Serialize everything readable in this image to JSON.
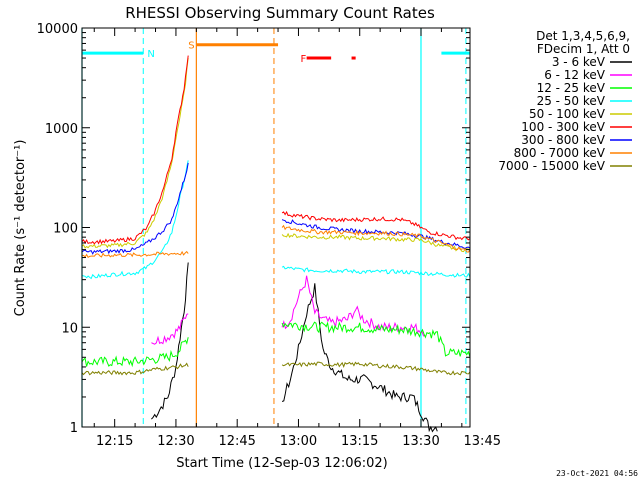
{
  "chart_data": {
    "type": "line",
    "title": "RHESSI Observing Summary Count Rates",
    "xlabel": "Start Time (12-Sep-03 12:06:02)",
    "ylabel": "Count Rate (s⁻¹ detector⁻¹)",
    "yscale": "log",
    "ylim": [
      1,
      10000
    ],
    "xlim_minutes": [
      7,
      102
    ],
    "y_ticks": [
      {
        "value": 1,
        "label": "1"
      },
      {
        "value": 10,
        "label": "10"
      },
      {
        "value": 100,
        "label": "100"
      },
      {
        "value": 1000,
        "label": "1000"
      },
      {
        "value": 10000,
        "label": "10000"
      }
    ],
    "x_ticks": [
      {
        "value": 15,
        "label": "12:15"
      },
      {
        "value": 30,
        "label": "12:30"
      },
      {
        "value": 45,
        "label": "12:45"
      },
      {
        "value": 60,
        "label": "13:00"
      },
      {
        "value": 75,
        "label": "13:15"
      },
      {
        "value": 90,
        "label": "13:30"
      },
      {
        "value": 105,
        "label": "13:45"
      }
    ],
    "legend_header": [
      "Det 1,3,4,5,6,9,",
      "FDecim 1, Att 0"
    ],
    "series": [
      {
        "name": "3 - 6 keV",
        "color": "#000000",
        "x": [
          7,
          22,
          24,
          26,
          28,
          30,
          31,
          32,
          33,
          35,
          38,
          55,
          56,
          58,
          60,
          62,
          64,
          66,
          68,
          72,
          76,
          80,
          84,
          88,
          92,
          94,
          96,
          98,
          100,
          102
        ],
        "y": [
          null,
          null,
          1.2,
          1.5,
          2,
          4,
          8,
          15,
          40,
          null,
          null,
          null,
          1.8,
          3,
          6,
          14,
          25,
          6,
          4,
          3,
          3,
          2.5,
          2,
          2,
          1,
          1,
          null,
          null,
          null,
          null
        ]
      },
      {
        "name": "6 - 12 keV",
        "color": "#ff00ff",
        "x": [
          7,
          22,
          24,
          26,
          28,
          30,
          31,
          32,
          33,
          35,
          38,
          55,
          56,
          58,
          60,
          62,
          64,
          66,
          68,
          72,
          74,
          76,
          80,
          84,
          88,
          91,
          93,
          96,
          98,
          100,
          102
        ],
        "y": [
          null,
          null,
          7,
          7.5,
          8,
          9,
          10,
          12,
          15,
          null,
          null,
          null,
          10,
          12,
          20,
          30,
          14,
          12,
          11,
          12,
          15,
          12,
          10,
          10,
          10,
          9,
          null,
          null,
          null,
          null,
          null
        ]
      },
      {
        "name": "12 - 25 keV",
        "color": "#00ff00",
        "x": [
          7,
          10,
          15,
          20,
          25,
          28,
          30,
          31,
          32,
          33,
          35,
          38,
          55,
          56,
          60,
          65,
          70,
          75,
          80,
          85,
          90,
          94,
          96,
          98,
          100,
          102
        ],
        "y": [
          4.5,
          4.5,
          4.5,
          4.5,
          4.8,
          5,
          5.5,
          6,
          7,
          8,
          null,
          null,
          null,
          11,
          10.5,
          10,
          10,
          10,
          9.5,
          9.5,
          9,
          8.5,
          5.5,
          5.5,
          5.5,
          5.5
        ]
      },
      {
        "name": "25 - 50 keV",
        "color": "#00ffff",
        "x": [
          7,
          10,
          15,
          20,
          23,
          25,
          27,
          29,
          30,
          31,
          32,
          33,
          35,
          38,
          55,
          56,
          60,
          65,
          70,
          75,
          80,
          85,
          90,
          95,
          100,
          102
        ],
        "y": [
          33,
          32,
          34,
          35,
          40,
          48,
          60,
          90,
          130,
          200,
          300,
          450,
          null,
          null,
          null,
          40,
          38,
          37,
          37,
          36,
          36,
          36,
          35,
          34,
          33,
          33
        ]
      },
      {
        "name": "50 - 100 keV",
        "color": "#cccc00",
        "x": [
          7,
          10,
          15,
          20,
          23,
          25,
          27,
          29,
          30,
          31,
          32,
          33,
          35,
          38,
          55,
          56,
          60,
          65,
          70,
          75,
          80,
          85,
          90,
          95,
          100,
          102
        ],
        "y": [
          65,
          65,
          66,
          70,
          90,
          130,
          220,
          450,
          800,
          1300,
          2200,
          4800,
          null,
          null,
          null,
          85,
          82,
          80,
          80,
          78,
          78,
          76,
          75,
          65,
          60,
          60
        ]
      },
      {
        "name": "100 - 300 keV",
        "color": "#ff0000",
        "x": [
          7,
          10,
          15,
          20,
          23,
          25,
          27,
          29,
          30,
          31,
          32,
          33,
          35,
          38,
          55,
          56,
          60,
          65,
          70,
          75,
          80,
          85,
          88,
          92,
          95,
          100,
          102
        ],
        "y": [
          72,
          72,
          73,
          78,
          100,
          150,
          250,
          500,
          900,
          1500,
          2500,
          5500,
          null,
          null,
          null,
          140,
          130,
          122,
          118,
          120,
          122,
          120,
          110,
          90,
          85,
          78,
          78
        ]
      },
      {
        "name": "300 - 800 keV",
        "color": "#0000ff",
        "x": [
          7,
          10,
          15,
          20,
          23,
          25,
          27,
          29,
          30,
          31,
          32,
          33,
          35,
          38,
          55,
          56,
          60,
          65,
          70,
          75,
          80,
          85,
          90,
          95,
          100,
          102
        ],
        "y": [
          57,
          57,
          58,
          60,
          70,
          80,
          95,
          120,
          160,
          220,
          300,
          430,
          null,
          null,
          null,
          120,
          110,
          100,
          95,
          92,
          90,
          88,
          82,
          72,
          65,
          62
        ]
      },
      {
        "name": "800 - 7000 keV",
        "color": "#ff8000",
        "x": [
          7,
          10,
          15,
          20,
          25,
          30,
          33,
          35,
          38,
          55,
          56,
          60,
          65,
          70,
          75,
          80,
          85,
          90,
          95,
          100,
          102
        ],
        "y": [
          52,
          52,
          53,
          53,
          54,
          55,
          55,
          null,
          null,
          null,
          100,
          95,
          90,
          90,
          88,
          88,
          86,
          82,
          70,
          60,
          58
        ]
      },
      {
        "name": "7000 - 15000 keV",
        "color": "#808000",
        "x": [
          7,
          10,
          15,
          20,
          25,
          30,
          33,
          35,
          38,
          55,
          56,
          60,
          65,
          70,
          75,
          80,
          85,
          90,
          95,
          100,
          102
        ],
        "y": [
          3.5,
          3.5,
          3.5,
          3.5,
          3.8,
          4,
          4.2,
          null,
          null,
          null,
          4.2,
          4.2,
          4.3,
          4.2,
          4.3,
          4.1,
          4,
          3.8,
          3.5,
          3.5,
          3.5
        ]
      }
    ],
    "flags": [
      {
        "code": "N",
        "color": "#00ffff",
        "value": 5600,
        "segments": [
          [
            7,
            22
          ],
          [
            95,
            102
          ]
        ]
      },
      {
        "code": "S",
        "color": "#ff8000",
        "value": 6800,
        "segments": [
          [
            35,
            55
          ]
        ]
      },
      {
        "code": "F",
        "color": "#ff0000",
        "value": 5000,
        "segments": [
          [
            62,
            68
          ],
          [
            73,
            74
          ]
        ]
      }
    ],
    "solid_lines": [
      {
        "color": "#00ffff",
        "x": 7
      },
      {
        "color": "#ff8000",
        "x": 35
      },
      {
        "color": "#00ffff",
        "x": 90
      }
    ],
    "dashed_lines": [
      {
        "color": "#00ffff",
        "x": 22
      },
      {
        "color": "#ff8000",
        "x": 54
      },
      {
        "color": "#00ffff",
        "x": 101
      }
    ],
    "timestamp": "23-Oct-2021 04:56"
  }
}
